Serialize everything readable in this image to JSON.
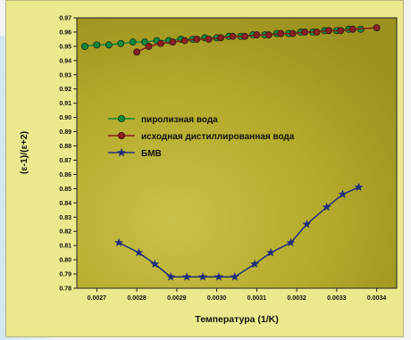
{
  "chart_data": {
    "type": "line",
    "xlabel": "Температура (1/K)",
    "ylabel": "(ε-1)/(ε+2)",
    "xlim": [
      0.00265,
      0.00345
    ],
    "ylim": [
      0.78,
      0.97
    ],
    "x_ticks": [
      "0.0027",
      "0.0028",
      "0.0029",
      "0.0030",
      "0.0031",
      "0.0032",
      "0.0033",
      "0.0034"
    ],
    "y_ticks": [
      "0.78",
      "0.79",
      "0.80",
      "0.81",
      "0.82",
      "0.83",
      "0.84",
      "0.85",
      "0.86",
      "0.87",
      "0.88",
      "0.89",
      "0.90",
      "0.91",
      "0.92",
      "0.93",
      "0.94",
      "0.95",
      "0.96",
      "0.97"
    ],
    "legend_position": "center-left",
    "series": [
      {
        "name": "пиролизная вода",
        "color": "#0d8a3a",
        "marker": "circle",
        "points": [
          [
            0.00267,
            0.95
          ],
          [
            0.0027,
            0.951
          ],
          [
            0.00273,
            0.951
          ],
          [
            0.00276,
            0.952
          ],
          [
            0.00279,
            0.953
          ],
          [
            0.00282,
            0.953
          ],
          [
            0.00285,
            0.954
          ],
          [
            0.00288,
            0.954
          ],
          [
            0.00291,
            0.955
          ],
          [
            0.00294,
            0.955
          ],
          [
            0.00297,
            0.956
          ],
          [
            0.003,
            0.956
          ],
          [
            0.00303,
            0.957
          ],
          [
            0.00306,
            0.957
          ],
          [
            0.00309,
            0.958
          ],
          [
            0.00312,
            0.958
          ],
          [
            0.00315,
            0.959
          ],
          [
            0.00318,
            0.959
          ],
          [
            0.00321,
            0.96
          ],
          [
            0.00324,
            0.96
          ],
          [
            0.00327,
            0.961
          ],
          [
            0.0033,
            0.961
          ],
          [
            0.00333,
            0.962
          ],
          [
            0.00336,
            0.962
          ]
        ]
      },
      {
        "name": "исходная дистиллированная вода",
        "color": "#8a1f1f",
        "marker": "circle",
        "points": [
          [
            0.0028,
            0.946
          ],
          [
            0.00283,
            0.95
          ],
          [
            0.00286,
            0.952
          ],
          [
            0.00289,
            0.953
          ],
          [
            0.00292,
            0.954
          ],
          [
            0.00295,
            0.955
          ],
          [
            0.00298,
            0.955
          ],
          [
            0.00301,
            0.956
          ],
          [
            0.00304,
            0.957
          ],
          [
            0.00307,
            0.957
          ],
          [
            0.0031,
            0.958
          ],
          [
            0.00313,
            0.958
          ],
          [
            0.00316,
            0.959
          ],
          [
            0.00319,
            0.959
          ],
          [
            0.00322,
            0.96
          ],
          [
            0.00325,
            0.96
          ],
          [
            0.00328,
            0.961
          ],
          [
            0.00331,
            0.961
          ],
          [
            0.00334,
            0.962
          ],
          [
            0.0034,
            0.963
          ]
        ]
      },
      {
        "name": "БМВ",
        "color": "#1f2e7a",
        "marker": "star",
        "points": [
          [
            0.002755,
            0.812
          ],
          [
            0.002805,
            0.805
          ],
          [
            0.002845,
            0.797
          ],
          [
            0.002885,
            0.788
          ],
          [
            0.002925,
            0.788
          ],
          [
            0.002965,
            0.788
          ],
          [
            0.003005,
            0.788
          ],
          [
            0.003045,
            0.788
          ],
          [
            0.003095,
            0.797
          ],
          [
            0.003135,
            0.805
          ],
          [
            0.003185,
            0.812
          ],
          [
            0.003225,
            0.825
          ],
          [
            0.003275,
            0.837
          ],
          [
            0.003315,
            0.846
          ],
          [
            0.003355,
            0.851
          ]
        ]
      }
    ]
  },
  "colors": {
    "plot_background": "#b5ab2a",
    "figure_background": "#ece88e"
  }
}
